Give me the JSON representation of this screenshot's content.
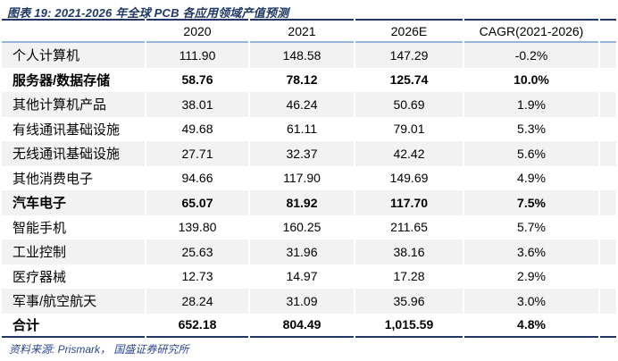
{
  "figure": {
    "title": "图表 19:  2021-2026 年全球 PCB 各应用领域产值预测",
    "source": "资料来源: Prismark， 国盛证券研究所"
  },
  "table": {
    "columns": [
      "2020",
      "2021",
      "2026E",
      "CAGR(2021-2026)"
    ],
    "rows": [
      {
        "label": "个人计算机",
        "values": [
          "111.90",
          "148.58",
          "147.29",
          "-0.2%"
        ],
        "bold": false
      },
      {
        "label": "服务器/数据存储",
        "values": [
          "58.76",
          "78.12",
          "125.74",
          "10.0%"
        ],
        "bold": true
      },
      {
        "label": "其他计算机产品",
        "values": [
          "38.01",
          "46.24",
          "50.69",
          "1.9%"
        ],
        "bold": false
      },
      {
        "label": "有线通讯基础设施",
        "values": [
          "49.68",
          "61.11",
          "79.01",
          "5.3%"
        ],
        "bold": false
      },
      {
        "label": "无线通讯基础设施",
        "values": [
          "27.71",
          "32.37",
          "42.42",
          "5.6%"
        ],
        "bold": false
      },
      {
        "label": "其他消费电子",
        "values": [
          "94.66",
          "117.90",
          "149.69",
          "4.9%"
        ],
        "bold": false
      },
      {
        "label": "汽车电子",
        "values": [
          "65.07",
          "81.92",
          "117.70",
          "7.5%"
        ],
        "bold": true
      },
      {
        "label": "智能手机",
        "values": [
          "139.80",
          "160.25",
          "211.65",
          "5.7%"
        ],
        "bold": false
      },
      {
        "label": "工业控制",
        "values": [
          "25.63",
          "31.96",
          "38.16",
          "3.6%"
        ],
        "bold": false
      },
      {
        "label": "医疗器械",
        "values": [
          "12.73",
          "14.97",
          "17.28",
          "2.9%"
        ],
        "bold": false
      },
      {
        "label": "军事/航空航天",
        "values": [
          "28.24",
          "31.09",
          "35.96",
          "3.0%"
        ],
        "bold": false
      },
      {
        "label": "合计",
        "values": [
          "652.18",
          "804.49",
          "1,015.59",
          "4.8%"
        ],
        "bold": true
      }
    ]
  },
  "colors": {
    "title_navy": "#1f3864",
    "table_border_navy": "#1f3864",
    "header_rule_blue": "#95b3d7",
    "row_stripe_gray": "#f2f2f2",
    "source_blue": "#2b4590"
  }
}
